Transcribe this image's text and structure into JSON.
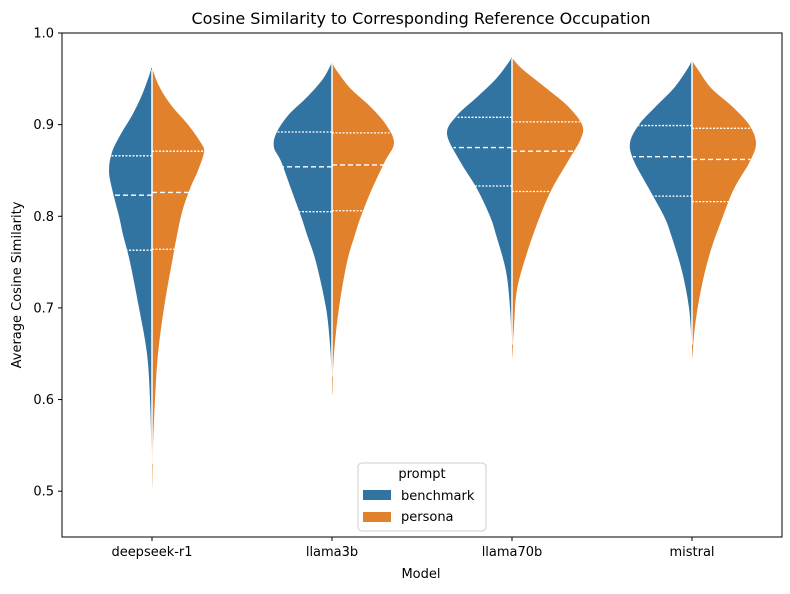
{
  "chart_data": {
    "type": "violin",
    "title": "Cosine Similarity to Corresponding Reference Occupation",
    "xlabel": "Model",
    "ylabel": "Average Cosine Similarity",
    "ylim": [
      0.45,
      1.0
    ],
    "yticks": [
      "0.5",
      "0.6",
      "0.7",
      "0.8",
      "0.9",
      "1.0"
    ],
    "categories": [
      "deepseek-r1",
      "llama3b",
      "llama70b",
      "mistral"
    ],
    "split": true,
    "inner": "quartile",
    "legend": {
      "title": "prompt",
      "placement": "lower center",
      "entries": [
        "benchmark",
        "persona"
      ]
    },
    "series": [
      {
        "name": "benchmark",
        "color": "#3274a1",
        "groups": [
          {
            "category": "deepseek-r1",
            "quartiles": [
              0.763,
              0.823,
              0.866
            ],
            "profile": [
              [
                0.53,
                0.2
              ],
              [
                0.6,
                2
              ],
              [
                0.65,
                5
              ],
              [
                0.7,
                13
              ],
              [
                0.75,
                22
              ],
              [
                0.78,
                29
              ],
              [
                0.8,
                33
              ],
              [
                0.83,
                40
              ],
              [
                0.85,
                43
              ],
              [
                0.87,
                40
              ],
              [
                0.89,
                31
              ],
              [
                0.91,
                20
              ],
              [
                0.93,
                11
              ],
              [
                0.95,
                4
              ],
              [
                0.962,
                0.5
              ]
            ]
          },
          {
            "category": "llama3b",
            "quartiles": [
              0.805,
              0.854,
              0.892
            ],
            "profile": [
              [
                0.625,
                0.2
              ],
              [
                0.66,
                2
              ],
              [
                0.7,
                6
              ],
              [
                0.75,
                16
              ],
              [
                0.78,
                25
              ],
              [
                0.8,
                31
              ],
              [
                0.83,
                41
              ],
              [
                0.86,
                51
              ],
              [
                0.875,
                58
              ],
              [
                0.89,
                56
              ],
              [
                0.91,
                44
              ],
              [
                0.93,
                25
              ],
              [
                0.95,
                9
              ],
              [
                0.967,
                0.5
              ]
            ]
          },
          {
            "category": "llama70b",
            "quartiles": [
              0.833,
              0.875,
              0.908
            ],
            "profile": [
              [
                0.66,
                0.2
              ],
              [
                0.7,
                2
              ],
              [
                0.74,
                6
              ],
              [
                0.78,
                16
              ],
              [
                0.8,
                22
              ],
              [
                0.83,
                35
              ],
              [
                0.86,
                52
              ],
              [
                0.89,
                65
              ],
              [
                0.91,
                55
              ],
              [
                0.93,
                35
              ],
              [
                0.95,
                16
              ],
              [
                0.967,
                4
              ],
              [
                0.973,
                0.5
              ]
            ]
          },
          {
            "category": "mistral",
            "quartiles": [
              0.822,
              0.865,
              0.899
            ],
            "profile": [
              [
                0.66,
                0.2
              ],
              [
                0.7,
                3
              ],
              [
                0.74,
                10
              ],
              [
                0.78,
                21
              ],
              [
                0.8,
                28
              ],
              [
                0.83,
                43
              ],
              [
                0.86,
                58
              ],
              [
                0.88,
                62
              ],
              [
                0.9,
                53
              ],
              [
                0.92,
                36
              ],
              [
                0.94,
                18
              ],
              [
                0.96,
                5
              ],
              [
                0.969,
                0.5
              ]
            ]
          }
        ]
      },
      {
        "name": "persona",
        "color": "#e1812c",
        "groups": [
          {
            "category": "deepseek-r1",
            "quartiles": [
              0.764,
              0.826,
              0.871
            ],
            "profile": [
              [
                0.505,
                0.2
              ],
              [
                0.55,
                1
              ],
              [
                0.6,
                3
              ],
              [
                0.65,
                6
              ],
              [
                0.7,
                12
              ],
              [
                0.75,
                20
              ],
              [
                0.8,
                29
              ],
              [
                0.83,
                38
              ],
              [
                0.85,
                46
              ],
              [
                0.87,
                52
              ],
              [
                0.88,
                49
              ],
              [
                0.9,
                36
              ],
              [
                0.92,
                20
              ],
              [
                0.94,
                8
              ],
              [
                0.96,
                0.5
              ]
            ]
          },
          {
            "category": "llama3b",
            "quartiles": [
              0.806,
              0.856,
              0.891
            ],
            "profile": [
              [
                0.605,
                0.2
              ],
              [
                0.65,
                2
              ],
              [
                0.7,
                7
              ],
              [
                0.75,
                15
              ],
              [
                0.78,
                23
              ],
              [
                0.8,
                29
              ],
              [
                0.83,
                40
              ],
              [
                0.86,
                53
              ],
              [
                0.88,
                62
              ],
              [
                0.9,
                54
              ],
              [
                0.92,
                38
              ],
              [
                0.94,
                18
              ],
              [
                0.96,
                4
              ],
              [
                0.967,
                0.5
              ]
            ]
          },
          {
            "category": "llama70b",
            "quartiles": [
              0.827,
              0.871,
              0.903
            ],
            "profile": [
              [
                0.645,
                0.2
              ],
              [
                0.68,
                2
              ],
              [
                0.72,
                5
              ],
              [
                0.76,
                15
              ],
              [
                0.8,
                28
              ],
              [
                0.83,
                40
              ],
              [
                0.86,
                56
              ],
              [
                0.885,
                69
              ],
              [
                0.9,
                70
              ],
              [
                0.92,
                56
              ],
              [
                0.94,
                34
              ],
              [
                0.96,
                11
              ],
              [
                0.972,
                0.5
              ]
            ]
          },
          {
            "category": "mistral",
            "quartiles": [
              0.816,
              0.862,
              0.896
            ],
            "profile": [
              [
                0.645,
                0.2
              ],
              [
                0.68,
                3
              ],
              [
                0.72,
                9
              ],
              [
                0.76,
                18
              ],
              [
                0.8,
                31
              ],
              [
                0.83,
                42
              ],
              [
                0.86,
                58
              ],
              [
                0.88,
                64
              ],
              [
                0.9,
                57
              ],
              [
                0.92,
                40
              ],
              [
                0.94,
                19
              ],
              [
                0.96,
                6
              ],
              [
                0.969,
                0.5
              ]
            ]
          }
        ]
      }
    ]
  }
}
